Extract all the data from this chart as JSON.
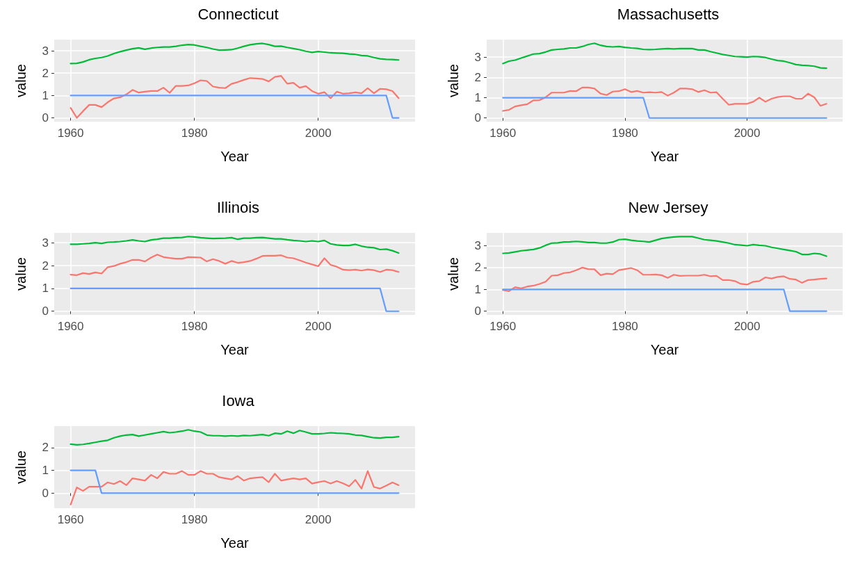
{
  "chart_data": [
    {
      "type": "line",
      "title": "Connecticut",
      "xlabel": "Year",
      "ylabel": "value",
      "xlim": [
        1957.35,
        2015.65
      ],
      "xticks": [
        1960,
        1980,
        2000
      ],
      "ylim": [
        -0.17,
        3.5
      ],
      "yticks": [
        0,
        1,
        2,
        3
      ],
      "grid": true,
      "x": [
        1960,
        1961,
        1962,
        1963,
        1964,
        1965,
        1966,
        1967,
        1968,
        1969,
        1970,
        1971,
        1972,
        1973,
        1974,
        1975,
        1976,
        1977,
        1978,
        1979,
        1980,
        1981,
        1982,
        1983,
        1984,
        1985,
        1986,
        1987,
        1988,
        1989,
        1990,
        1991,
        1992,
        1993,
        1994,
        1995,
        1996,
        1997,
        1998,
        1999,
        2000,
        2001,
        2002,
        2003,
        2004,
        2005,
        2006,
        2007,
        2008,
        2009,
        2010,
        2011,
        2012,
        2013
      ],
      "series": [
        {
          "color": "#f8766d",
          "values": [
            0.45,
            0.0,
            0.3,
            0.58,
            0.58,
            0.48,
            0.7,
            0.87,
            0.92,
            1.05,
            1.25,
            1.13,
            1.17,
            1.2,
            1.2,
            1.35,
            1.12,
            1.43,
            1.43,
            1.45,
            1.55,
            1.68,
            1.65,
            1.4,
            1.35,
            1.33,
            1.52,
            1.6,
            1.7,
            1.78,
            1.76,
            1.74,
            1.63,
            1.83,
            1.88,
            1.53,
            1.57,
            1.35,
            1.42,
            1.2,
            1.08,
            1.15,
            0.88,
            1.17,
            1.08,
            1.1,
            1.14,
            1.1,
            1.33,
            1.1,
            1.3,
            1.28,
            1.2,
            0.88
          ]
        },
        {
          "color": "#00ba38",
          "values": [
            2.43,
            2.44,
            2.5,
            2.6,
            2.66,
            2.7,
            2.77,
            2.88,
            2.96,
            3.03,
            3.09,
            3.13,
            3.07,
            3.12,
            3.15,
            3.17,
            3.17,
            3.2,
            3.25,
            3.28,
            3.26,
            3.2,
            3.15,
            3.08,
            3.03,
            3.04,
            3.05,
            3.12,
            3.2,
            3.27,
            3.31,
            3.33,
            3.28,
            3.2,
            3.21,
            3.15,
            3.1,
            3.05,
            2.98,
            2.93,
            2.97,
            2.94,
            2.91,
            2.9,
            2.89,
            2.86,
            2.84,
            2.79,
            2.77,
            2.7,
            2.64,
            2.62,
            2.61,
            2.59
          ]
        },
        {
          "color": "#619cff",
          "x": [
            1960,
            2011,
            2012,
            2013
          ],
          "values": [
            1,
            1,
            0,
            0
          ]
        }
      ]
    },
    {
      "type": "line",
      "title": "Massachusetts",
      "xlabel": "Year",
      "ylabel": "value",
      "xlim": [
        1957.35,
        2015.65
      ],
      "xticks": [
        1960,
        1980,
        2000
      ],
      "ylim": [
        -0.18,
        3.86
      ],
      "yticks": [
        0,
        1,
        2,
        3
      ],
      "grid": true,
      "x": [
        1960,
        1961,
        1962,
        1963,
        1964,
        1965,
        1966,
        1967,
        1968,
        1969,
        1970,
        1971,
        1972,
        1973,
        1974,
        1975,
        1976,
        1977,
        1978,
        1979,
        1980,
        1981,
        1982,
        1983,
        1984,
        1985,
        1986,
        1987,
        1988,
        1989,
        1990,
        1991,
        1992,
        1993,
        1994,
        1995,
        1996,
        1997,
        1998,
        1999,
        2000,
        2001,
        2002,
        2003,
        2004,
        2005,
        2006,
        2007,
        2008,
        2009,
        2010,
        2011,
        2012,
        2013
      ],
      "series": [
        {
          "color": "#f8766d",
          "values": [
            0.35,
            0.4,
            0.57,
            0.63,
            0.68,
            0.87,
            0.88,
            1.02,
            1.25,
            1.25,
            1.25,
            1.33,
            1.32,
            1.5,
            1.5,
            1.45,
            1.2,
            1.13,
            1.3,
            1.32,
            1.42,
            1.28,
            1.33,
            1.25,
            1.27,
            1.25,
            1.28,
            1.1,
            1.25,
            1.45,
            1.45,
            1.42,
            1.28,
            1.37,
            1.25,
            1.27,
            0.95,
            0.65,
            0.7,
            0.7,
            0.7,
            0.8,
            1.0,
            0.8,
            0.95,
            1.03,
            1.07,
            1.07,
            0.95,
            0.95,
            1.2,
            1.02,
            0.6,
            0.7
          ]
        },
        {
          "color": "#00ba38",
          "values": [
            2.68,
            2.8,
            2.85,
            2.95,
            3.05,
            3.15,
            3.17,
            3.25,
            3.35,
            3.38,
            3.4,
            3.45,
            3.45,
            3.52,
            3.62,
            3.68,
            3.58,
            3.52,
            3.5,
            3.52,
            3.48,
            3.45,
            3.43,
            3.38,
            3.37,
            3.38,
            3.4,
            3.42,
            3.4,
            3.42,
            3.42,
            3.42,
            3.35,
            3.35,
            3.27,
            3.2,
            3.13,
            3.08,
            3.03,
            3.02,
            3.0,
            3.03,
            3.02,
            2.98,
            2.9,
            2.83,
            2.8,
            2.72,
            2.63,
            2.6,
            2.58,
            2.55,
            2.47,
            2.45
          ]
        },
        {
          "color": "#619cff",
          "x": [
            1960,
            1983,
            1984,
            2013
          ],
          "values": [
            1,
            1,
            0,
            0
          ]
        }
      ]
    },
    {
      "type": "line",
      "title": "Illinois",
      "xlabel": "Year",
      "ylabel": "value",
      "xlim": [
        1957.35,
        2015.65
      ],
      "xticks": [
        1960,
        1980,
        2000
      ],
      "ylim": [
        -0.16,
        3.43
      ],
      "yticks": [
        0,
        1,
        2,
        3
      ],
      "grid": true,
      "x": [
        1960,
        1961,
        1962,
        1963,
        1964,
        1965,
        1966,
        1967,
        1968,
        1969,
        1970,
        1971,
        1972,
        1973,
        1974,
        1975,
        1976,
        1977,
        1978,
        1979,
        1980,
        1981,
        1982,
        1983,
        1984,
        1985,
        1986,
        1987,
        1988,
        1989,
        1990,
        1991,
        1992,
        1993,
        1994,
        1995,
        1996,
        1997,
        1998,
        1999,
        2000,
        2001,
        2002,
        2003,
        2004,
        2005,
        2006,
        2007,
        2008,
        2009,
        2010,
        2011,
        2012,
        2013
      ],
      "series": [
        {
          "color": "#f8766d",
          "values": [
            1.6,
            1.58,
            1.67,
            1.63,
            1.7,
            1.65,
            1.93,
            1.98,
            2.08,
            2.15,
            2.25,
            2.25,
            2.18,
            2.35,
            2.48,
            2.37,
            2.33,
            2.3,
            2.3,
            2.37,
            2.36,
            2.35,
            2.18,
            2.28,
            2.2,
            2.08,
            2.2,
            2.12,
            2.15,
            2.2,
            2.3,
            2.42,
            2.43,
            2.43,
            2.45,
            2.35,
            2.32,
            2.23,
            2.13,
            2.05,
            1.97,
            2.32,
            2.03,
            1.95,
            1.82,
            1.8,
            1.82,
            1.78,
            1.83,
            1.8,
            1.72,
            1.82,
            1.8,
            1.72
          ]
        },
        {
          "color": "#00ba38",
          "values": [
            2.93,
            2.93,
            2.95,
            2.97,
            3.0,
            2.97,
            3.02,
            3.03,
            3.05,
            3.08,
            3.12,
            3.08,
            3.05,
            3.12,
            3.15,
            3.2,
            3.2,
            3.22,
            3.23,
            3.27,
            3.25,
            3.22,
            3.2,
            3.18,
            3.19,
            3.2,
            3.22,
            3.15,
            3.2,
            3.2,
            3.22,
            3.23,
            3.2,
            3.17,
            3.17,
            3.13,
            3.1,
            3.08,
            3.05,
            3.08,
            3.05,
            3.1,
            2.95,
            2.9,
            2.88,
            2.88,
            2.93,
            2.85,
            2.8,
            2.78,
            2.7,
            2.72,
            2.65,
            2.55
          ]
        },
        {
          "color": "#619cff",
          "x": [
            1960,
            2010,
            2011,
            2013
          ],
          "values": [
            1,
            1,
            0,
            0
          ]
        }
      ]
    },
    {
      "type": "line",
      "title": "New Jersey",
      "xlabel": "Year",
      "ylabel": "value",
      "xlim": [
        1957.35,
        2015.65
      ],
      "xticks": [
        1960,
        1980,
        2000
      ],
      "ylim": [
        -0.17,
        3.59
      ],
      "yticks": [
        0,
        1,
        2,
        3
      ],
      "grid": true,
      "x": [
        1960,
        1961,
        1962,
        1963,
        1964,
        1965,
        1966,
        1967,
        1968,
        1969,
        1970,
        1971,
        1972,
        1973,
        1974,
        1975,
        1976,
        1977,
        1978,
        1979,
        1980,
        1981,
        1982,
        1983,
        1984,
        1985,
        1986,
        1987,
        1988,
        1989,
        1990,
        1991,
        1992,
        1993,
        1994,
        1995,
        1996,
        1997,
        1998,
        1999,
        2000,
        2001,
        2002,
        2003,
        2004,
        2005,
        2006,
        2007,
        2008,
        2009,
        2010,
        2011,
        2012,
        2013
      ],
      "series": [
        {
          "color": "#f8766d",
          "values": [
            0.97,
            0.92,
            1.1,
            1.05,
            1.13,
            1.17,
            1.25,
            1.35,
            1.63,
            1.65,
            1.75,
            1.78,
            1.88,
            2.0,
            1.93,
            1.92,
            1.65,
            1.72,
            1.7,
            1.88,
            1.93,
            1.98,
            1.88,
            1.67,
            1.67,
            1.68,
            1.65,
            1.53,
            1.67,
            1.62,
            1.63,
            1.63,
            1.63,
            1.67,
            1.6,
            1.62,
            1.43,
            1.43,
            1.38,
            1.25,
            1.22,
            1.35,
            1.38,
            1.55,
            1.5,
            1.57,
            1.6,
            1.48,
            1.45,
            1.3,
            1.43,
            1.45,
            1.48,
            1.5
          ]
        },
        {
          "color": "#00ba38",
          "values": [
            2.65,
            2.67,
            2.72,
            2.77,
            2.8,
            2.83,
            2.9,
            3.02,
            3.12,
            3.13,
            3.17,
            3.18,
            3.2,
            3.18,
            3.15,
            3.15,
            3.12,
            3.12,
            3.17,
            3.28,
            3.3,
            3.25,
            3.22,
            3.2,
            3.17,
            3.25,
            3.33,
            3.37,
            3.4,
            3.42,
            3.42,
            3.42,
            3.35,
            3.28,
            3.25,
            3.22,
            3.17,
            3.12,
            3.05,
            3.03,
            3.0,
            3.05,
            3.02,
            3.0,
            2.93,
            2.88,
            2.83,
            2.78,
            2.73,
            2.6,
            2.6,
            2.65,
            2.62,
            2.52
          ]
        },
        {
          "color": "#619cff",
          "x": [
            1960,
            2006,
            2007,
            2013
          ],
          "values": [
            1,
            1,
            0,
            0
          ]
        }
      ]
    },
    {
      "type": "line",
      "title": "Iowa",
      "xlabel": "Year",
      "ylabel": "value",
      "xlim": [
        1957.35,
        2015.65
      ],
      "xticks": [
        1960,
        1980,
        2000
      ],
      "ylim": [
        -0.66,
        2.94
      ],
      "yticks": [
        0,
        1,
        2
      ],
      "grid": true,
      "x": [
        1960,
        1961,
        1962,
        1963,
        1964,
        1965,
        1966,
        1967,
        1968,
        1969,
        1970,
        1971,
        1972,
        1973,
        1974,
        1975,
        1976,
        1977,
        1978,
        1979,
        1980,
        1981,
        1982,
        1983,
        1984,
        1985,
        1986,
        1987,
        1988,
        1989,
        1990,
        1991,
        1992,
        1993,
        1994,
        1995,
        1996,
        1997,
        1998,
        1999,
        2000,
        2001,
        2002,
        2003,
        2004,
        2005,
        2006,
        2007,
        2008,
        2009,
        2010,
        2011,
        2012,
        2013
      ],
      "series": [
        {
          "color": "#f8766d",
          "values": [
            -0.5,
            0.25,
            0.1,
            0.28,
            0.28,
            0.28,
            0.47,
            0.4,
            0.53,
            0.35,
            0.65,
            0.6,
            0.55,
            0.8,
            0.65,
            0.93,
            0.85,
            0.85,
            0.97,
            0.8,
            0.8,
            0.97,
            0.85,
            0.85,
            0.7,
            0.65,
            0.6,
            0.75,
            0.55,
            0.65,
            0.68,
            0.7,
            0.48,
            0.85,
            0.55,
            0.6,
            0.65,
            0.6,
            0.65,
            0.42,
            0.48,
            0.53,
            0.42,
            0.53,
            0.43,
            0.3,
            0.58,
            0.2,
            0.97,
            0.27,
            0.2,
            0.33,
            0.47,
            0.35
          ]
        },
        {
          "color": "#00ba38",
          "values": [
            2.15,
            2.12,
            2.14,
            2.18,
            2.23,
            2.28,
            2.32,
            2.43,
            2.5,
            2.55,
            2.57,
            2.5,
            2.55,
            2.6,
            2.65,
            2.7,
            2.65,
            2.68,
            2.72,
            2.78,
            2.72,
            2.68,
            2.55,
            2.52,
            2.52,
            2.5,
            2.52,
            2.5,
            2.53,
            2.52,
            2.55,
            2.57,
            2.52,
            2.63,
            2.6,
            2.72,
            2.63,
            2.75,
            2.68,
            2.6,
            2.6,
            2.62,
            2.65,
            2.63,
            2.62,
            2.6,
            2.55,
            2.53,
            2.48,
            2.43,
            2.42,
            2.45,
            2.45,
            2.48
          ]
        },
        {
          "color": "#619cff",
          "x": [
            1960,
            1964,
            1965,
            2013
          ],
          "values": [
            1,
            1,
            0,
            0
          ]
        }
      ]
    }
  ]
}
